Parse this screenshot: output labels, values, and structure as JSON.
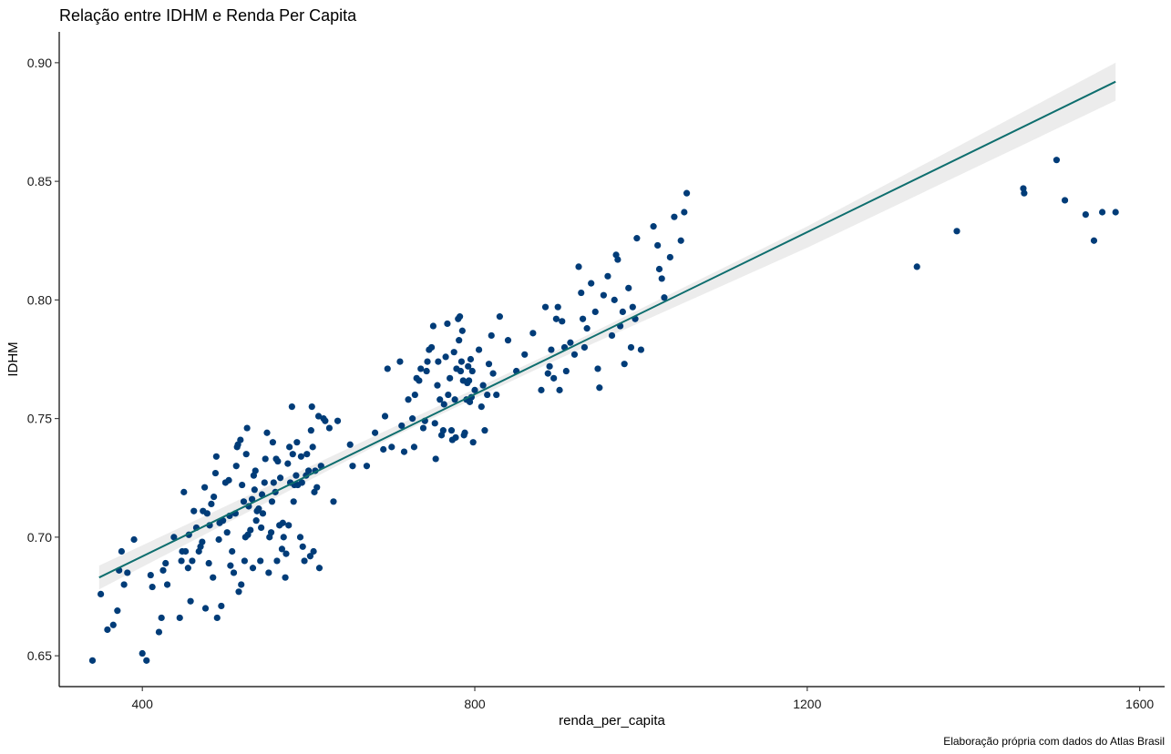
{
  "chart_data": {
    "type": "scatter",
    "title": "Relação entre IDHM e Renda Per Capita",
    "xlabel": "renda_per_capita",
    "ylabel": "IDHM",
    "caption": "Elaboração própria com dados do Atlas Brasil",
    "xlim": [
      300,
      1630
    ],
    "ylim": [
      0.637,
      0.913
    ],
    "x_ticks": [
      400,
      800,
      1200,
      1600
    ],
    "x_tick_labels": [
      "400",
      "800",
      "1200",
      "1600"
    ],
    "y_ticks": [
      0.65,
      0.7,
      0.75,
      0.8,
      0.85,
      0.9
    ],
    "y_tick_labels": [
      "0.65",
      "0.70",
      "0.75",
      "0.80",
      "0.85",
      "0.90"
    ],
    "grid": false,
    "legend": "none",
    "colors": {
      "points": "#003c78",
      "fit_line": "#0e6e6e",
      "ci_band": "#c8c8c8"
    },
    "fit": {
      "method": "linear",
      "x_range": [
        348,
        1571
      ],
      "line": [
        [
          348,
          0.683
        ],
        [
          1571,
          0.892
        ]
      ],
      "ci_lower": [
        [
          348,
          0.678
        ],
        [
          700,
          0.742
        ],
        [
          900,
          0.775
        ],
        [
          1200,
          0.822
        ],
        [
          1571,
          0.884
        ]
      ],
      "ci_upper": [
        [
          348,
          0.688
        ],
        [
          700,
          0.746
        ],
        [
          900,
          0.779
        ],
        [
          1200,
          0.831
        ],
        [
          1571,
          0.9
        ]
      ]
    },
    "points": [
      [
        340,
        0.648
      ],
      [
        350,
        0.676
      ],
      [
        358,
        0.661
      ],
      [
        365,
        0.663
      ],
      [
        370,
        0.669
      ],
      [
        372,
        0.686
      ],
      [
        375,
        0.694
      ],
      [
        378,
        0.68
      ],
      [
        382,
        0.685
      ],
      [
        390,
        0.699
      ],
      [
        400,
        0.651
      ],
      [
        405,
        0.648
      ],
      [
        410,
        0.684
      ],
      [
        412,
        0.679
      ],
      [
        420,
        0.66
      ],
      [
        423,
        0.666
      ],
      [
        425,
        0.686
      ],
      [
        428,
        0.689
      ],
      [
        430,
        0.68
      ],
      [
        438,
        0.7
      ],
      [
        445,
        0.666
      ],
      [
        447,
        0.69
      ],
      [
        448,
        0.694
      ],
      [
        450,
        0.719
      ],
      [
        452,
        0.694
      ],
      [
        455,
        0.687
      ],
      [
        456,
        0.701
      ],
      [
        458,
        0.673
      ],
      [
        460,
        0.69
      ],
      [
        462,
        0.711
      ],
      [
        465,
        0.704
      ],
      [
        468,
        0.694
      ],
      [
        470,
        0.696
      ],
      [
        472,
        0.698
      ],
      [
        473,
        0.711
      ],
      [
        475,
        0.721
      ],
      [
        476,
        0.67
      ],
      [
        478,
        0.71
      ],
      [
        480,
        0.689
      ],
      [
        481,
        0.705
      ],
      [
        483,
        0.714
      ],
      [
        485,
        0.683
      ],
      [
        486,
        0.717
      ],
      [
        488,
        0.727
      ],
      [
        489,
        0.734
      ],
      [
        490,
        0.666
      ],
      [
        492,
        0.699
      ],
      [
        493,
        0.706
      ],
      [
        495,
        0.671
      ],
      [
        497,
        0.707
      ],
      [
        500,
        0.723
      ],
      [
        502,
        0.702
      ],
      [
        504,
        0.724
      ],
      [
        505,
        0.709
      ],
      [
        506,
        0.688
      ],
      [
        508,
        0.694
      ],
      [
        510,
        0.685
      ],
      [
        512,
        0.71
      ],
      [
        513,
        0.73
      ],
      [
        514,
        0.738
      ],
      [
        515,
        0.739
      ],
      [
        516,
        0.677
      ],
      [
        518,
        0.741
      ],
      [
        519,
        0.68
      ],
      [
        520,
        0.722
      ],
      [
        522,
        0.715
      ],
      [
        523,
        0.69
      ],
      [
        524,
        0.7
      ],
      [
        525,
        0.735
      ],
      [
        526,
        0.746
      ],
      [
        527,
        0.701
      ],
      [
        528,
        0.713
      ],
      [
        530,
        0.703
      ],
      [
        532,
        0.716
      ],
      [
        533,
        0.687
      ],
      [
        534,
        0.726
      ],
      [
        535,
        0.72
      ],
      [
        536,
        0.728
      ],
      [
        537,
        0.707
      ],
      [
        538,
        0.711
      ],
      [
        540,
        0.712
      ],
      [
        542,
        0.69
      ],
      [
        543,
        0.704
      ],
      [
        544,
        0.718
      ],
      [
        545,
        0.71
      ],
      [
        547,
        0.723
      ],
      [
        548,
        0.733
      ],
      [
        550,
        0.744
      ],
      [
        552,
        0.685
      ],
      [
        553,
        0.7
      ],
      [
        555,
        0.702
      ],
      [
        556,
        0.715
      ],
      [
        557,
        0.74
      ],
      [
        558,
        0.723
      ],
      [
        560,
        0.719
      ],
      [
        561,
        0.733
      ],
      [
        562,
        0.69
      ],
      [
        563,
        0.732
      ],
      [
        565,
        0.705
      ],
      [
        566,
        0.725
      ],
      [
        568,
        0.695
      ],
      [
        569,
        0.706
      ],
      [
        570,
        0.7
      ],
      [
        572,
        0.683
      ],
      [
        573,
        0.693
      ],
      [
        575,
        0.731
      ],
      [
        576,
        0.705
      ],
      [
        577,
        0.738
      ],
      [
        578,
        0.723
      ],
      [
        580,
        0.755
      ],
      [
        581,
        0.735
      ],
      [
        582,
        0.715
      ],
      [
        583,
        0.722
      ],
      [
        585,
        0.726
      ],
      [
        586,
        0.74
      ],
      [
        587,
        0.722
      ],
      [
        590,
        0.7
      ],
      [
        591,
        0.734
      ],
      [
        592,
        0.723
      ],
      [
        593,
        0.696
      ],
      [
        595,
        0.69
      ],
      [
        597,
        0.726
      ],
      [
        598,
        0.735
      ],
      [
        600,
        0.728
      ],
      [
        602,
        0.692
      ],
      [
        603,
        0.745
      ],
      [
        604,
        0.755
      ],
      [
        605,
        0.738
      ],
      [
        606,
        0.694
      ],
      [
        607,
        0.719
      ],
      [
        608,
        0.728
      ],
      [
        610,
        0.721
      ],
      [
        612,
        0.751
      ],
      [
        613,
        0.687
      ],
      [
        615,
        0.73
      ],
      [
        618,
        0.75
      ],
      [
        620,
        0.749
      ],
      [
        625,
        0.746
      ],
      [
        630,
        0.715
      ],
      [
        635,
        0.749
      ],
      [
        650,
        0.739
      ],
      [
        653,
        0.73
      ],
      [
        670,
        0.73
      ],
      [
        680,
        0.744
      ],
      [
        690,
        0.737
      ],
      [
        692,
        0.751
      ],
      [
        695,
        0.771
      ],
      [
        700,
        0.738
      ],
      [
        710,
        0.774
      ],
      [
        712,
        0.747
      ],
      [
        715,
        0.736
      ],
      [
        720,
        0.758
      ],
      [
        725,
        0.75
      ],
      [
        727,
        0.738
      ],
      [
        728,
        0.76
      ],
      [
        730,
        0.767
      ],
      [
        733,
        0.766
      ],
      [
        735,
        0.771
      ],
      [
        738,
        0.746
      ],
      [
        740,
        0.749
      ],
      [
        742,
        0.77
      ],
      [
        743,
        0.774
      ],
      [
        745,
        0.779
      ],
      [
        748,
        0.78
      ],
      [
        750,
        0.789
      ],
      [
        752,
        0.748
      ],
      [
        753,
        0.733
      ],
      [
        755,
        0.764
      ],
      [
        756,
        0.774
      ],
      [
        758,
        0.758
      ],
      [
        760,
        0.743
      ],
      [
        762,
        0.745
      ],
      [
        763,
        0.756
      ],
      [
        765,
        0.776
      ],
      [
        767,
        0.79
      ],
      [
        768,
        0.76
      ],
      [
        770,
        0.767
      ],
      [
        772,
        0.745
      ],
      [
        773,
        0.741
      ],
      [
        775,
        0.778
      ],
      [
        776,
        0.758
      ],
      [
        777,
        0.742
      ],
      [
        778,
        0.771
      ],
      [
        780,
        0.792
      ],
      [
        781,
        0.783
      ],
      [
        782,
        0.793
      ],
      [
        783,
        0.77
      ],
      [
        784,
        0.774
      ],
      [
        785,
        0.787
      ],
      [
        786,
        0.766
      ],
      [
        787,
        0.743
      ],
      [
        788,
        0.744
      ],
      [
        790,
        0.758
      ],
      [
        791,
        0.765
      ],
      [
        792,
        0.772
      ],
      [
        793,
        0.766
      ],
      [
        794,
        0.757
      ],
      [
        795,
        0.775
      ],
      [
        796,
        0.759
      ],
      [
        797,
        0.77
      ],
      [
        798,
        0.74
      ],
      [
        800,
        0.762
      ],
      [
        805,
        0.779
      ],
      [
        808,
        0.755
      ],
      [
        810,
        0.764
      ],
      [
        812,
        0.745
      ],
      [
        815,
        0.76
      ],
      [
        817,
        0.773
      ],
      [
        820,
        0.785
      ],
      [
        822,
        0.769
      ],
      [
        826,
        0.76
      ],
      [
        830,
        0.793
      ],
      [
        840,
        0.783
      ],
      [
        850,
        0.77
      ],
      [
        860,
        0.777
      ],
      [
        870,
        0.786
      ],
      [
        880,
        0.762
      ],
      [
        885,
        0.797
      ],
      [
        888,
        0.769
      ],
      [
        890,
        0.772
      ],
      [
        892,
        0.779
      ],
      [
        895,
        0.767
      ],
      [
        898,
        0.792
      ],
      [
        900,
        0.797
      ],
      [
        902,
        0.762
      ],
      [
        905,
        0.791
      ],
      [
        908,
        0.78
      ],
      [
        910,
        0.77
      ],
      [
        915,
        0.782
      ],
      [
        920,
        0.777
      ],
      [
        925,
        0.814
      ],
      [
        928,
        0.803
      ],
      [
        930,
        0.792
      ],
      [
        932,
        0.78
      ],
      [
        935,
        0.788
      ],
      [
        940,
        0.807
      ],
      [
        945,
        0.795
      ],
      [
        948,
        0.771
      ],
      [
        950,
        0.763
      ],
      [
        955,
        0.802
      ],
      [
        960,
        0.81
      ],
      [
        965,
        0.785
      ],
      [
        968,
        0.8
      ],
      [
        970,
        0.819
      ],
      [
        972,
        0.817
      ],
      [
        975,
        0.789
      ],
      [
        978,
        0.795
      ],
      [
        980,
        0.773
      ],
      [
        985,
        0.805
      ],
      [
        988,
        0.78
      ],
      [
        990,
        0.797
      ],
      [
        993,
        0.792
      ],
      [
        995,
        0.826
      ],
      [
        1000,
        0.779
      ],
      [
        1015,
        0.831
      ],
      [
        1020,
        0.823
      ],
      [
        1022,
        0.813
      ],
      [
        1025,
        0.809
      ],
      [
        1028,
        0.801
      ],
      [
        1035,
        0.818
      ],
      [
        1040,
        0.835
      ],
      [
        1048,
        0.825
      ],
      [
        1052,
        0.837
      ],
      [
        1055,
        0.845
      ],
      [
        1332,
        0.814
      ],
      [
        1380,
        0.829
      ],
      [
        1460,
        0.847
      ],
      [
        1461,
        0.845
      ],
      [
        1500,
        0.859
      ],
      [
        1510,
        0.842
      ],
      [
        1535,
        0.836
      ],
      [
        1545,
        0.825
      ],
      [
        1555,
        0.837
      ],
      [
        1571,
        0.837
      ]
    ]
  }
}
